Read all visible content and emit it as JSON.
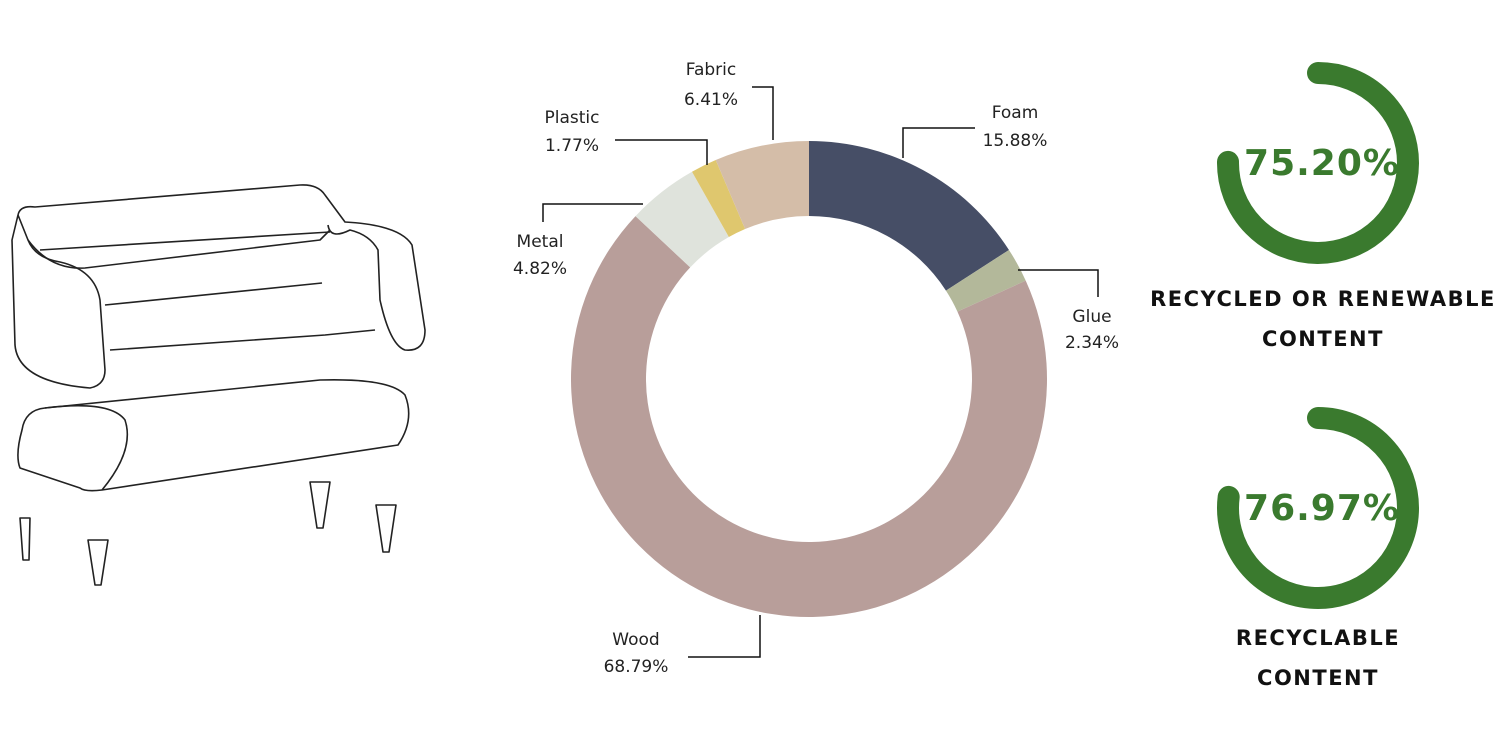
{
  "chart_data": [
    {
      "type": "donut",
      "categories": [
        "Foam",
        "Glue",
        "Wood",
        "Metal",
        "Plastic",
        "Fabric"
      ],
      "values": [
        15.88,
        2.34,
        68.79,
        4.82,
        1.77,
        6.41
      ],
      "value_labels": [
        "15.88%",
        "2.34%",
        "68.79%",
        "4.82%",
        "1.77%",
        "6.41%"
      ],
      "colors": [
        "#464e66",
        "#b3b89a",
        "#b89e9a",
        "#dfe3dc",
        "#dfc76e",
        "#d4bda8"
      ]
    },
    {
      "type": "gauge",
      "title": "RECYCLED OR RENEWABLE CONTENT",
      "values": [
        75.2
      ],
      "value_labels": [
        "75.20%"
      ],
      "color": "#3a7a2e"
    },
    {
      "type": "gauge",
      "title": "RECYCLABLE CONTENT",
      "values": [
        76.97
      ],
      "value_labels": [
        "76.97%"
      ],
      "color": "#3a7a2e"
    }
  ]
}
